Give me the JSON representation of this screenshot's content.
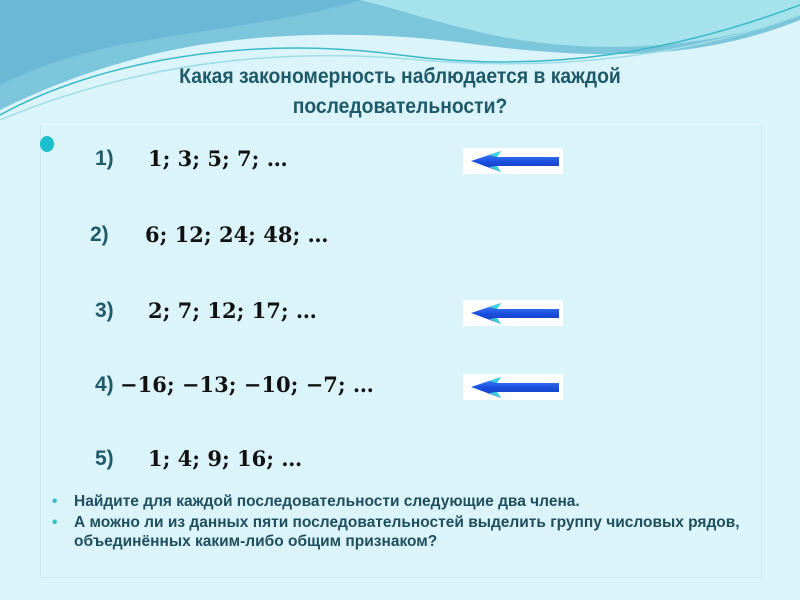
{
  "slide": {
    "title_line1": "Какая закономерность наблюдается в каждой",
    "title_line2": "последовательности?",
    "sequences": [
      {
        "label": "1)",
        "terms": "1; 3; 5; 7; …",
        "arrow": true
      },
      {
        "label": "2)",
        "terms": "6; 12; 24; 48; …",
        "arrow": false
      },
      {
        "label": "3)",
        "terms": "2; 7; 12; 17; …",
        "arrow": true
      },
      {
        "label": "4)",
        "terms": "−16; −13; −10; −7; …",
        "arrow": true
      },
      {
        "label": "5)",
        "terms": "1; 4; 9; 16; …",
        "arrow": false
      }
    ],
    "bullets": [
      "Найдите для каждой последовательности следующие два члена.",
      "А можно ли из данных пяти последовательностей выделить группу числовых рядов, объединённых каким-либо общим признаком?"
    ],
    "bullet_marker": "•",
    "icons": {
      "arrow": "arrow-left-icon"
    },
    "colors": {
      "background": "#dbf4f9",
      "title": "#1f5a6a",
      "accent": "#1bbfcc",
      "arrow": "#1a4fe0"
    }
  }
}
